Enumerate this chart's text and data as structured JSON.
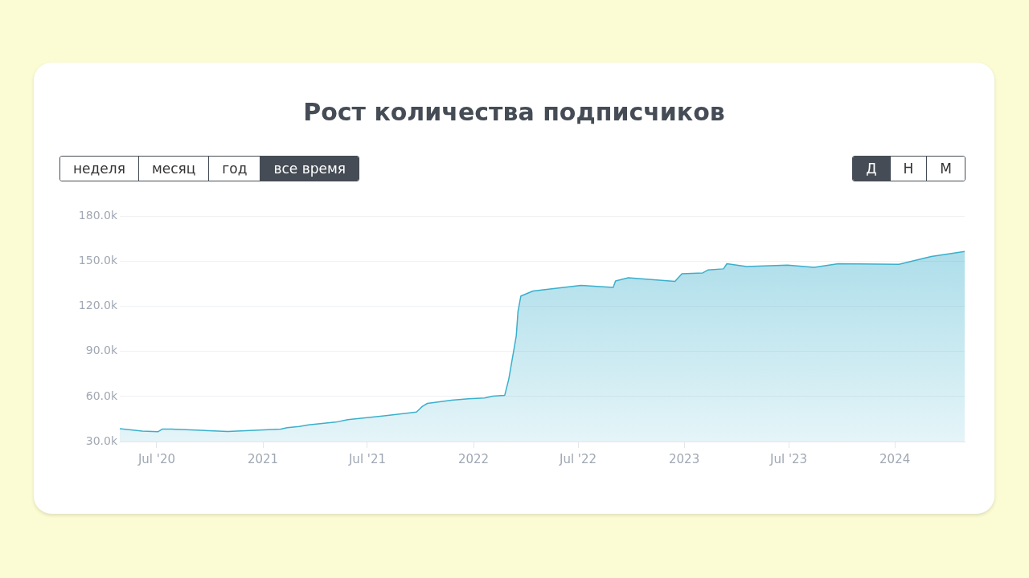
{
  "chart_data": {
    "type": "area",
    "title": "Рост количества подписчиков",
    "annotations": [
      "неделя",
      "месяц",
      "год",
      "все время",
      "Д",
      "Н",
      "М"
    ],
    "x": [
      "2020-04-28",
      "2020-06-06",
      "2020-07-03",
      "2020-07-11",
      "2020-07-26",
      "2020-11-01",
      "2021-01-02",
      "2021-02-01",
      "2021-02-12",
      "2021-03-05",
      "2021-03-21",
      "2021-05-07",
      "2021-05-28",
      "2021-07-30",
      "2021-09-24",
      "2021-10-04",
      "2021-10-13",
      "2021-11-24",
      "2021-12-23",
      "2022-01-20",
      "2022-02-03",
      "2022-02-24",
      "2022-03-03",
      "2022-03-16",
      "2022-03-19",
      "2022-03-24",
      "2022-04-14",
      "2022-07-06",
      "2022-08-31",
      "2022-09-04",
      "2022-09-26",
      "2022-12-16",
      "2022-12-28",
      "2023-02-02",
      "2023-02-11",
      "2023-03-10",
      "2023-03-16",
      "2023-04-19",
      "2023-06-29",
      "2023-08-14",
      "2023-09-25",
      "2024-01-08",
      "2024-03-04",
      "2024-05-01"
    ],
    "series": [
      {
        "color": "#3aafcc",
        "values": [
          38.5,
          36.9,
          36.5,
          38.3,
          38.3,
          36.7,
          37.7,
          38.3,
          39.2,
          40.0,
          41.1,
          42.9,
          44.6,
          47.1,
          49.6,
          53.3,
          55.4,
          57.5,
          58.5,
          59.0,
          60.2,
          60.8,
          71.5,
          100.4,
          116.7,
          126.9,
          130.2,
          134.0,
          132.7,
          136.9,
          139.0,
          136.6,
          141.7,
          142.3,
          144.2,
          145.0,
          148.4,
          146.5,
          147.5,
          146.0,
          148.4,
          148.0,
          153.2,
          156.5
        ]
      }
    ],
    "xlim": [
      "2020-04-28",
      "2024-05-01"
    ],
    "xticks": [
      {
        "value": "2020-07-01",
        "label": "Jul '20"
      },
      {
        "value": "2021-01-01",
        "label": "2021"
      },
      {
        "value": "2021-07-01",
        "label": "Jul '21"
      },
      {
        "value": "2022-01-01",
        "label": "2022"
      },
      {
        "value": "2022-07-01",
        "label": "Jul '22"
      },
      {
        "value": "2023-01-01",
        "label": "2023"
      },
      {
        "value": "2023-07-01",
        "label": "Jul '23"
      },
      {
        "value": "2024-01-01",
        "label": "2024"
      }
    ],
    "ylim": [
      30,
      180
    ],
    "yticks": [
      {
        "value": 30,
        "label": "30.0k"
      },
      {
        "value": 60,
        "label": "60.0k"
      },
      {
        "value": 90,
        "label": "90.0k"
      },
      {
        "value": 120,
        "label": "120.0k"
      },
      {
        "value": 150,
        "label": "150.0k"
      },
      {
        "value": 180,
        "label": "180.0k"
      }
    ],
    "grid": "y",
    "legend": false,
    "marker": "none",
    "line_style": "solid"
  }
}
